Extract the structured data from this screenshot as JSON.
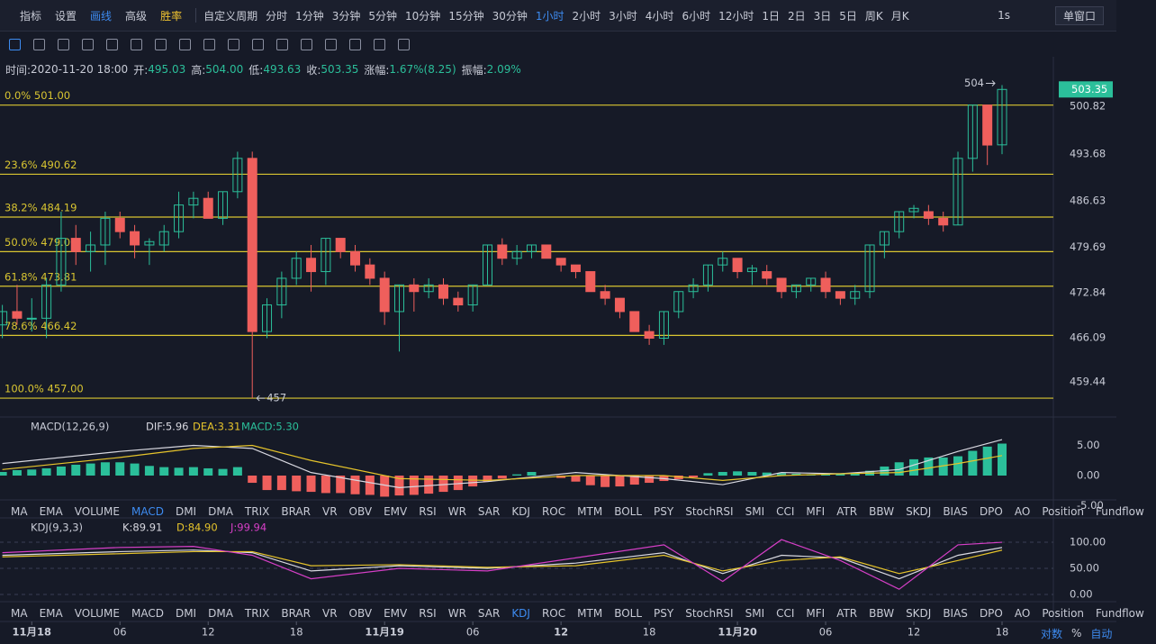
{
  "toolbar": {
    "left": [
      "指标",
      "设置",
      "画线",
      "高级",
      "胜率"
    ],
    "periods": [
      "自定义周期",
      "分时",
      "1分钟",
      "3分钟",
      "5分钟",
      "10分钟",
      "15分钟",
      "30分钟",
      "1小时",
      "2小时",
      "3小时",
      "4小时",
      "6小时",
      "12小时",
      "1日",
      "2日",
      "3日",
      "5日",
      "周K",
      "月K"
    ],
    "active_period": 8,
    "right": [
      "1s",
      "单窗口"
    ]
  },
  "ohlc_header": [
    {
      "label": "时间:",
      "value": "2020-11-20 18:00"
    },
    {
      "label": "开:",
      "value": "495.03"
    },
    {
      "label": "高:",
      "value": "504.00"
    },
    {
      "label": "低:",
      "value": "493.63"
    },
    {
      "label": "收:",
      "value": "503.35"
    },
    {
      "label": "涨幅:",
      "value": "1.67%(8.25)"
    },
    {
      "label": "振幅:",
      "value": "2.09%"
    }
  ],
  "indicator_tabs": [
    "MA",
    "EMA",
    "VOLUME",
    "MACD",
    "DMI",
    "DMA",
    "TRIX",
    "BRAR",
    "VR",
    "OBV",
    "EMV",
    "RSI",
    "WR",
    "SAR",
    "KDJ",
    "ROC",
    "MTM",
    "BOLL",
    "PSY",
    "StochRSI",
    "SMI",
    "CCI",
    "MFI",
    "ATR",
    "BBW",
    "SKDJ",
    "BIAS",
    "DPO",
    "AO",
    "Position",
    "Fundflow"
  ],
  "scale_options": [
    "对数",
    "%",
    "自动"
  ],
  "chart_data": [
    {
      "type": "candlestick",
      "up_color": "#2bbf9a",
      "down_color": "#ef5f5c",
      "xlim": [
        -0.16,
        71.49
      ],
      "ylim": [
        454.17,
        507.31
      ],
      "yticks": [
        500.82,
        493.68,
        486.63,
        479.69,
        472.84,
        466.09,
        459.44
      ],
      "xticks": [
        {
          "value": 2,
          "label": "11月18"
        },
        {
          "value": 8,
          "label": "06"
        },
        {
          "value": 14,
          "label": "12"
        },
        {
          "value": 20,
          "label": "18"
        },
        {
          "value": 26,
          "label": "11月19"
        },
        {
          "value": 32,
          "label": "06"
        },
        {
          "value": 38,
          "label": "12"
        },
        {
          "value": 44,
          "label": "18"
        },
        {
          "value": 50,
          "label": "11月20"
        },
        {
          "value": 56,
          "label": "06"
        },
        {
          "value": 62,
          "label": "12"
        },
        {
          "value": 68,
          "label": "18"
        }
      ],
      "open": [
        468,
        470,
        469,
        469,
        474,
        481,
        479,
        480,
        484,
        482,
        480,
        480,
        482,
        486,
        487,
        484,
        488,
        493,
        467,
        471,
        475,
        478,
        476,
        481,
        479,
        477,
        475,
        470,
        474,
        473,
        474,
        472,
        471,
        474,
        480,
        478,
        479,
        480,
        478,
        477,
        476,
        473,
        472,
        470,
        467,
        466,
        470,
        473,
        474,
        477,
        478,
        476,
        476,
        475,
        473,
        474,
        475,
        473,
        472,
        473,
        480,
        482,
        485,
        485,
        484,
        483,
        493,
        501,
        495.03
      ],
      "high": [
        471,
        474,
        472,
        475,
        485,
        483,
        482,
        485,
        485,
        483,
        481,
        483,
        488,
        488,
        488,
        488,
        494,
        494,
        472,
        476,
        479,
        480,
        481,
        481,
        480,
        478,
        476,
        474,
        475,
        475,
        475,
        473,
        474,
        480,
        481,
        480,
        480,
        480,
        478,
        477,
        476,
        474,
        472,
        470,
        468,
        470,
        473,
        475,
        477,
        479,
        478,
        477,
        477,
        475,
        474,
        475,
        476,
        473,
        474,
        480,
        482,
        485,
        486,
        486,
        485,
        494,
        501,
        501,
        504
      ],
      "low": [
        466,
        468,
        467,
        466,
        473,
        477,
        476,
        477,
        481,
        478,
        477,
        479,
        481,
        484,
        484,
        483,
        487,
        457,
        466,
        469,
        474,
        473,
        474,
        478,
        476,
        474,
        468,
        464,
        470,
        472,
        471,
        470,
        470,
        474,
        477,
        477,
        478,
        478,
        476,
        475,
        473,
        471,
        469,
        467,
        465,
        465,
        469,
        472,
        473,
        476,
        475,
        474,
        474,
        472,
        472,
        473,
        472,
        471,
        471,
        472,
        478,
        481,
        484,
        483,
        482,
        483,
        491,
        492,
        493.63
      ],
      "close": [
        470,
        469,
        469,
        474,
        481,
        479,
        480,
        484,
        482,
        480,
        480.5,
        482,
        486,
        487,
        484,
        488,
        493,
        467,
        471,
        475,
        478,
        476,
        481,
        479,
        477,
        475,
        470,
        474,
        473,
        474,
        472,
        471,
        474,
        480,
        478,
        479,
        480,
        478,
        477,
        476,
        473,
        472,
        470,
        467,
        466,
        470,
        473,
        474,
        477,
        478,
        476,
        476.5,
        475,
        473,
        474,
        475,
        473,
        472,
        473,
        480,
        482,
        485,
        485.5,
        484,
        483,
        493,
        501,
        495,
        503.35
      ],
      "fib_color": "#d9c531",
      "fib_levels": [
        {
          "label": "0.0% 501.00",
          "value": 501.0
        },
        {
          "label": "23.6% 490.62",
          "value": 490.62
        },
        {
          "label": "38.2% 484.19",
          "value": 484.19
        },
        {
          "label": "50.0% 479.00",
          "value": 479.0
        },
        {
          "label": "61.8% 473.81",
          "value": 473.81
        },
        {
          "label": "78.6% 466.42",
          "value": 466.42
        },
        {
          "label": "100.0% 457.00",
          "value": 457.0
        }
      ],
      "annotations": [
        {
          "text": "504",
          "value": 504,
          "index": 68
        },
        {
          "text": "457",
          "value": 457,
          "index": 17
        }
      ],
      "last_price": 503.35
    },
    {
      "type": "macd",
      "title": "MACD(12,26,9)",
      "ylim": [
        -6.57,
        6.57
      ],
      "yticks": [
        {
          "value": 5,
          "label": "5.00"
        },
        {
          "value": 0,
          "label": "0.00"
        },
        {
          "value": -5,
          "label": "-5.00"
        }
      ],
      "histogram": {
        "name": "MACD:5.30",
        "color": "#2bbf9a",
        "down_color": "#ef5f5c",
        "values": [
          0.6,
          0.9,
          1.0,
          1.2,
          1.5,
          1.8,
          2.0,
          2.2,
          2.2,
          2.0,
          1.6,
          1.4,
          1.3,
          1.4,
          1.2,
          1.1,
          1.4,
          -1.2,
          -2.4,
          -2.4,
          -2.6,
          -2.7,
          -2.9,
          -2.9,
          -3.1,
          -3.2,
          -3.5,
          -3.3,
          -3.2,
          -3.0,
          -2.7,
          -2.4,
          -1.8,
          -1.0,
          -0.5,
          0.2,
          0.6,
          0.0,
          -0.4,
          -1.0,
          -1.6,
          -1.9,
          -1.8,
          -1.5,
          -1.2,
          -0.9,
          -0.6,
          -0.3,
          0.4,
          0.6,
          0.7,
          0.6,
          0.5,
          0.4,
          0.3,
          0.2,
          0.2,
          0.3,
          0.4,
          0.8,
          1.5,
          2.2,
          2.7,
          3.0,
          3.0,
          3.2,
          4.1,
          4.8,
          5.3
        ]
      },
      "x": [
        0,
        8,
        13,
        17,
        21,
        27,
        33,
        39,
        45,
        49,
        53,
        57,
        61,
        65,
        68
      ],
      "series": [
        {
          "name": "DIF:5.96",
          "color": "#d8d8e0",
          "values": [
            2.0,
            4.0,
            5.0,
            4.5,
            0.5,
            -2.0,
            -1.0,
            0.5,
            -0.5,
            -1.5,
            0.5,
            0.3,
            1.0,
            4.0,
            5.96
          ]
        },
        {
          "name": "DEA:3.31",
          "color": "#e5c32b",
          "values": [
            1.0,
            3.0,
            4.5,
            5.0,
            2.5,
            -0.5,
            -0.8,
            0.0,
            0.0,
            -0.8,
            0.0,
            0.3,
            0.5,
            2.0,
            3.31
          ]
        }
      ]
    },
    {
      "type": "kdj",
      "title": "KDJ(9,3,3)",
      "ylim": [
        -13.8,
        120.7
      ],
      "yticks": [
        {
          "value": 100,
          "label": "100.00"
        },
        {
          "value": 50,
          "label": "50.00"
        },
        {
          "value": 0,
          "label": "0.00"
        }
      ],
      "x": [
        0,
        8,
        13,
        17,
        21,
        27,
        33,
        39,
        45,
        49,
        53,
        57,
        61,
        65,
        68
      ],
      "series": [
        {
          "name": "K:89.91",
          "color": "#d8d8e0",
          "values": [
            75,
            82,
            85,
            80,
            45,
            55,
            50,
            60,
            80,
            40,
            75,
            70,
            30,
            75,
            89.91
          ]
        },
        {
          "name": "D:84.90",
          "color": "#e5c32b",
          "values": [
            72,
            78,
            82,
            82,
            55,
            57,
            52,
            55,
            75,
            45,
            65,
            72,
            40,
            65,
            84.9
          ]
        },
        {
          "name": "J:99.94",
          "color": "#d63fc7",
          "values": [
            80,
            90,
            92,
            75,
            30,
            50,
            45,
            70,
            95,
            25,
            105,
            65,
            10,
            95,
            99.94
          ]
        }
      ]
    }
  ]
}
